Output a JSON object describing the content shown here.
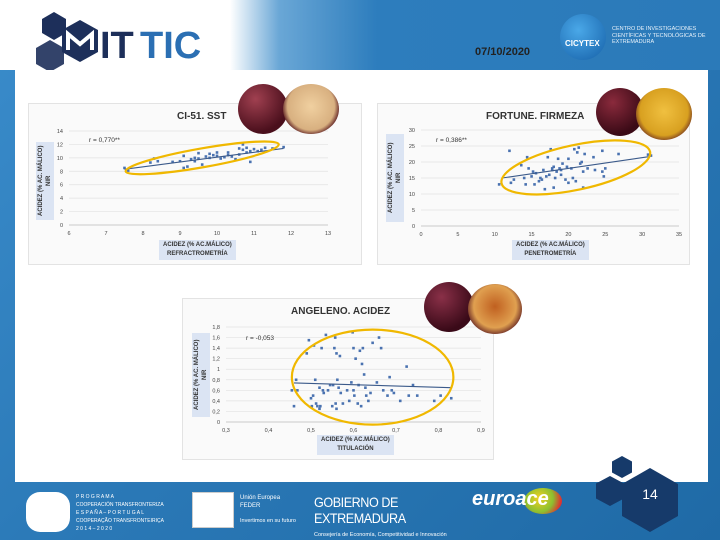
{
  "header": {
    "date": "07/10/2020",
    "logo_left": "MITTIC",
    "logo_right": {
      "name": "CICYTEX",
      "tagline": "CENTRO DE INVESTIGACIONES CIENTÍFICAS Y TECNOLÓGICAS DE EXTREMADURA"
    }
  },
  "footer": {
    "page_number": "14",
    "programme": {
      "line1": "P R O G R A M A",
      "line2": "COOPERACIÓN TRANSFRONTERIZA",
      "line3": "E S P A Ñ A  –  P O R T U G A L",
      "line4": "COOPERAÇÃO TRANSFRONTEIRIÇA",
      "line5": "2 0 1 4   –   2 0 2 0"
    },
    "eu": {
      "line1": "Unión Europea",
      "line2": "FEDER",
      "line3": "Invertimos en su futuro"
    },
    "gobierno": {
      "title": "GOBIERNO DE EXTREMADURA",
      "subtitle": "Consejería de Economía, Competitividad e Innovación"
    },
    "euroace": "euroace"
  },
  "colors": {
    "background": "#2b7ab9",
    "points": "#4a72b0",
    "trend": "#3b5a8a",
    "ellipse": "#f0b800",
    "label_bg": "#dbe4f3"
  },
  "chart_data": [
    {
      "type": "scatter",
      "title": "CI-51. SST",
      "annotation": "r = 0,770**",
      "xlabel": "ACIDEZ (% AC.MÁLICO)",
      "xlabel2": "REFRACTROMETRÍA",
      "ylabel": "ACIDEZ (% AC. MÁLICO)",
      "ylabel2": "NIR",
      "xlim": [
        6,
        13
      ],
      "ylim": [
        0,
        14
      ],
      "xticks": [
        "6",
        "7",
        "8",
        "9",
        "10",
        "11",
        "12",
        "13"
      ],
      "yticks": [
        "0",
        "2",
        "4",
        "6",
        "8",
        "10",
        "12",
        "14"
      ],
      "grid": true,
      "trendline": [
        [
          7.5,
          8.3
        ],
        [
          11.8,
          11.4
        ]
      ],
      "points": [
        [
          7.5,
          8.5
        ],
        [
          7.6,
          8.1
        ],
        [
          8.2,
          9.3
        ],
        [
          8.3,
          9.9
        ],
        [
          8.4,
          9.5
        ],
        [
          8.8,
          9.4
        ],
        [
          9.0,
          9.5
        ],
        [
          9.1,
          8.5
        ],
        [
          9.1,
          10.3
        ],
        [
          9.2,
          8.7
        ],
        [
          9.3,
          9.8
        ],
        [
          9.4,
          9.5
        ],
        [
          9.5,
          9.9
        ],
        [
          9.5,
          10.7
        ],
        [
          9.6,
          9.0
        ],
        [
          9.7,
          10.2
        ],
        [
          9.8,
          10.0
        ],
        [
          9.9,
          10.4
        ],
        [
          10.0,
          10.3
        ],
        [
          10.1,
          9.9
        ],
        [
          10.2,
          10.1
        ],
        [
          10.3,
          10.8
        ],
        [
          10.3,
          10.4
        ],
        [
          10.5,
          9.8
        ],
        [
          10.6,
          10.5
        ],
        [
          10.7,
          11.2
        ],
        [
          10.7,
          12.0
        ],
        [
          10.8,
          11.5
        ],
        [
          10.8,
          10.8
        ],
        [
          10.9,
          11.0
        ],
        [
          10.9,
          9.4
        ],
        [
          11.0,
          11.3
        ],
        [
          11.1,
          11.0
        ],
        [
          11.2,
          11.2
        ],
        [
          11.3,
          11.5
        ],
        [
          11.5,
          11.4
        ],
        [
          11.8,
          11.6
        ],
        [
          10.6,
          11.4
        ],
        [
          9.8,
          10.6
        ],
        [
          10.0,
          10.8
        ],
        [
          9.4,
          10.0
        ],
        [
          10.4,
          10.2
        ]
      ]
    },
    {
      "type": "scatter",
      "title": "FORTUNE. FIRMEZA",
      "annotation": "r = 0,386**",
      "xlabel": "ACIDEZ (% AC.MÁLICO)",
      "xlabel2": "PENETROMETRÍA",
      "ylabel": "ACIDEZ (% AC. MÁLICO)",
      "ylabel2": "NIR",
      "xlim": [
        0,
        35
      ],
      "ylim": [
        0,
        30
      ],
      "xticks": [
        "0",
        "5",
        "10",
        "15",
        "20",
        "25",
        "30",
        "35"
      ],
      "yticks": [
        "0",
        "5",
        "10",
        "15",
        "20",
        "25",
        "30"
      ],
      "grid": true,
      "trendline": [
        [
          11,
          15
        ],
        [
          31,
          21.7
        ]
      ],
      "points": [
        [
          10.6,
          13
        ],
        [
          12,
          23.5
        ],
        [
          12.2,
          13.5
        ],
        [
          12.6,
          14.5
        ],
        [
          13.6,
          19
        ],
        [
          14,
          15
        ],
        [
          14.2,
          13
        ],
        [
          14.4,
          21.5
        ],
        [
          14.6,
          18
        ],
        [
          15,
          15.5
        ],
        [
          15.2,
          17
        ],
        [
          15.4,
          13
        ],
        [
          15.6,
          16.5
        ],
        [
          16,
          14
        ],
        [
          16.4,
          14.5
        ],
        [
          16.6,
          17.5
        ],
        [
          16.8,
          11.5
        ],
        [
          17,
          15.5
        ],
        [
          17.2,
          21.5
        ],
        [
          17.4,
          16
        ],
        [
          17.6,
          24
        ],
        [
          17.8,
          18
        ],
        [
          18,
          12
        ],
        [
          18,
          18.5
        ],
        [
          18.2,
          15
        ],
        [
          18.4,
          17
        ],
        [
          18.6,
          21
        ],
        [
          18.8,
          18
        ],
        [
          19,
          17.5
        ],
        [
          19.2,
          19.5
        ],
        [
          19.6,
          14.5
        ],
        [
          20,
          21
        ],
        [
          20,
          13.5
        ],
        [
          20.4,
          18
        ],
        [
          20.6,
          15
        ],
        [
          20.8,
          24
        ],
        [
          21,
          14
        ],
        [
          21.2,
          23
        ],
        [
          21.4,
          24.5
        ],
        [
          21.6,
          19.5
        ],
        [
          21.8,
          20
        ],
        [
          22,
          17
        ],
        [
          22,
          12
        ],
        [
          22.2,
          22.5
        ],
        [
          22.6,
          18
        ],
        [
          23.4,
          21.5
        ],
        [
          23.6,
          17.5
        ],
        [
          24.6,
          23.5
        ],
        [
          24.6,
          17
        ],
        [
          24.8,
          15.5
        ],
        [
          25,
          18
        ],
        [
          26.8,
          22.5
        ],
        [
          31.2,
          22
        ],
        [
          30.8,
          22.3
        ],
        [
          19,
          16
        ],
        [
          17.8,
          17.5
        ],
        [
          16.2,
          15
        ],
        [
          19.8,
          18.5
        ]
      ]
    },
    {
      "type": "scatter",
      "title": "ANGELENO. ACIDEZ",
      "annotation": "r = -0,053",
      "xlabel": "ACIDEZ (% AC.MÁLICO)",
      "xlabel2": "TITULACIÓN",
      "ylabel": "ACIDEZ (% AC. MÁLICO)",
      "ylabel2": "NIR",
      "xlim": [
        0.3,
        0.9
      ],
      "ylim": [
        0,
        1.8
      ],
      "xticks": [
        "0,3",
        "0,4",
        "0,5",
        "0,6",
        "0,7",
        "0,8",
        "0,9"
      ],
      "yticks": [
        "0",
        "0,2",
        "0,4",
        "0,6",
        "0,8",
        "1",
        "1,2",
        "1,4",
        "1,6",
        "1,8"
      ],
      "grid": true,
      "trendline": [
        [
          0.46,
          0.74
        ],
        [
          0.83,
          0.65
        ]
      ],
      "points": [
        [
          0.455,
          0.6
        ],
        [
          0.46,
          0.3
        ],
        [
          0.465,
          0.8
        ],
        [
          0.468,
          0.6
        ],
        [
          0.49,
          1.3
        ],
        [
          0.495,
          1.55
        ],
        [
          0.5,
          0.45
        ],
        [
          0.502,
          0.3
        ],
        [
          0.505,
          0.5
        ],
        [
          0.507,
          1.45
        ],
        [
          0.51,
          0.8
        ],
        [
          0.512,
          0.35
        ],
        [
          0.515,
          0.3
        ],
        [
          0.52,
          0.65
        ],
        [
          0.522,
          0.3
        ],
        [
          0.525,
          1.4
        ],
        [
          0.528,
          0.6
        ],
        [
          0.53,
          0.55
        ],
        [
          0.535,
          1.65
        ],
        [
          0.54,
          0.6
        ],
        [
          0.545,
          0.7
        ],
        [
          0.55,
          0.3
        ],
        [
          0.552,
          0.7
        ],
        [
          0.555,
          1.4
        ],
        [
          0.557,
          1.6
        ],
        [
          0.558,
          0.35
        ],
        [
          0.56,
          1.3
        ],
        [
          0.562,
          0.8
        ],
        [
          0.565,
          0.65
        ],
        [
          0.568,
          1.25
        ],
        [
          0.57,
          0.55
        ],
        [
          0.575,
          0.35
        ],
        [
          0.585,
          0.6
        ],
        [
          0.59,
          0.4
        ],
        [
          0.595,
          0.75
        ],
        [
          0.598,
          1.7
        ],
        [
          0.6,
          1.4
        ],
        [
          0.602,
          0.5
        ],
        [
          0.605,
          1.2
        ],
        [
          0.61,
          0.35
        ],
        [
          0.612,
          0.7
        ],
        [
          0.615,
          1.35
        ],
        [
          0.618,
          0.3
        ],
        [
          0.62,
          1.1
        ],
        [
          0.622,
          1.4
        ],
        [
          0.625,
          0.9
        ],
        [
          0.628,
          0.65
        ],
        [
          0.63,
          0.5
        ],
        [
          0.635,
          0.4
        ],
        [
          0.64,
          0.55
        ],
        [
          0.645,
          1.5
        ],
        [
          0.655,
          0.75
        ],
        [
          0.66,
          1.6
        ],
        [
          0.665,
          1.4
        ],
        [
          0.67,
          0.6
        ],
        [
          0.68,
          0.5
        ],
        [
          0.685,
          0.85
        ],
        [
          0.69,
          0.6
        ],
        [
          0.695,
          0.55
        ],
        [
          0.71,
          0.4
        ],
        [
          0.725,
          1.05
        ],
        [
          0.73,
          0.5
        ],
        [
          0.74,
          0.7
        ],
        [
          0.75,
          0.5
        ],
        [
          0.79,
          0.4
        ],
        [
          0.805,
          0.5
        ],
        [
          0.83,
          0.45
        ],
        [
          0.56,
          0.25
        ],
        [
          0.52,
          0.25
        ],
        [
          0.6,
          0.6
        ]
      ]
    }
  ]
}
